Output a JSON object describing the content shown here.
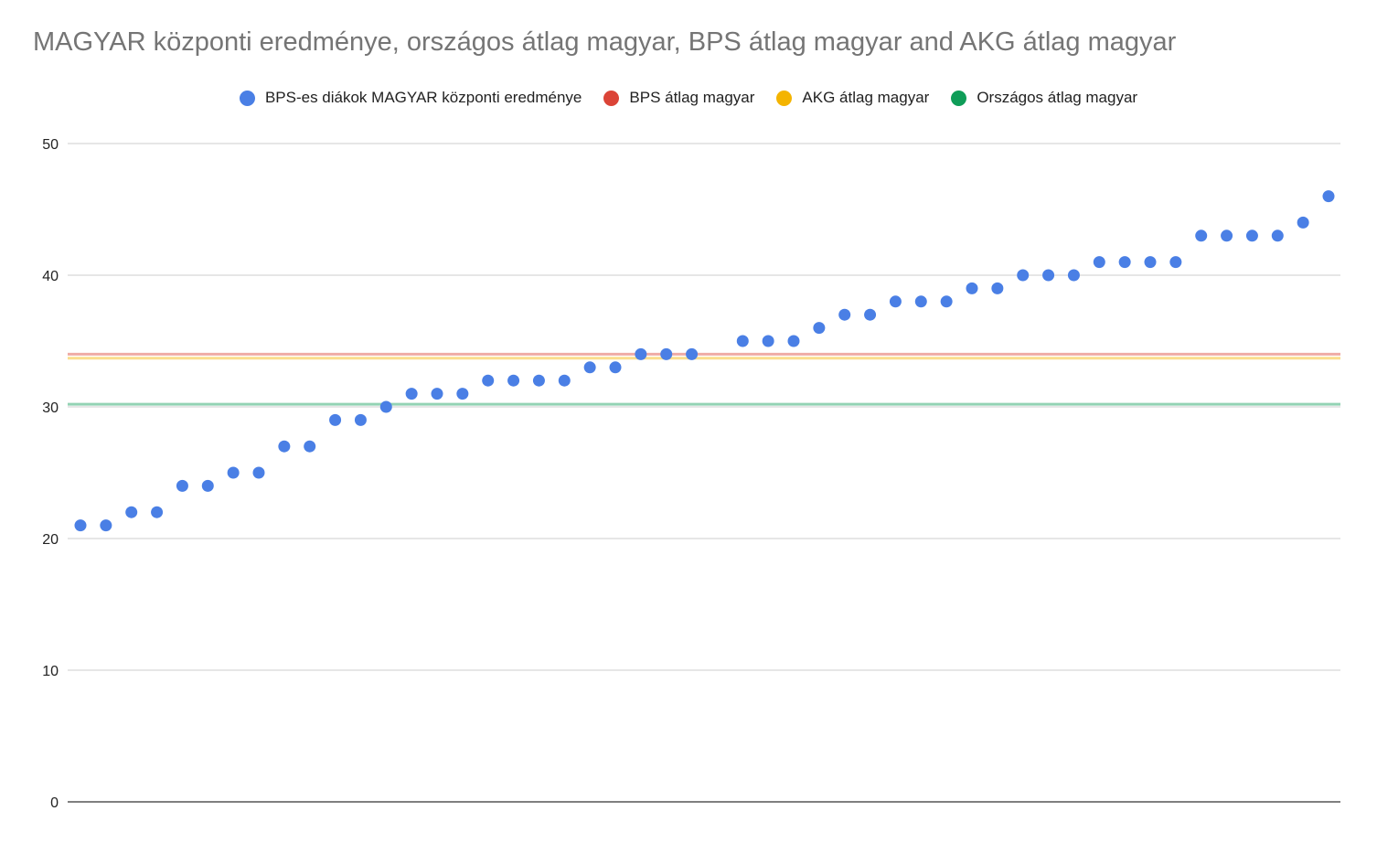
{
  "chart_data": {
    "type": "scatter",
    "title": "MAGYAR központi eredménye, országos átlag magyar, BPS átlag magyar and AKG átlag magyar",
    "xlabel": "",
    "ylabel": "",
    "ylim": [
      0,
      50
    ],
    "yticks": [
      0,
      10,
      20,
      30,
      40,
      50
    ],
    "grid": true,
    "legend_position": "top",
    "series": [
      {
        "name": "BPS-es diákok MAGYAR központi eredménye",
        "kind": "points",
        "color": "#4a7fe5",
        "values": [
          21,
          21,
          22,
          22,
          24,
          24,
          25,
          25,
          27,
          27,
          29,
          29,
          30,
          31,
          31,
          31,
          32,
          32,
          32,
          32,
          33,
          33,
          34,
          34,
          34,
          null,
          35,
          35,
          35,
          36,
          37,
          37,
          38,
          38,
          38,
          39,
          39,
          40,
          40,
          40,
          41,
          41,
          41,
          41,
          43,
          43,
          43,
          43,
          44,
          46
        ]
      },
      {
        "name": "BPS átlag magyar",
        "kind": "line",
        "color": "#db4437",
        "value": 34.0
      },
      {
        "name": "AKG átlag magyar",
        "kind": "line",
        "color": "#f4b400",
        "value": 33.7
      },
      {
        "name": "Országos átlag magyar",
        "kind": "line",
        "color": "#0f9d58",
        "value": 30.2
      }
    ]
  }
}
